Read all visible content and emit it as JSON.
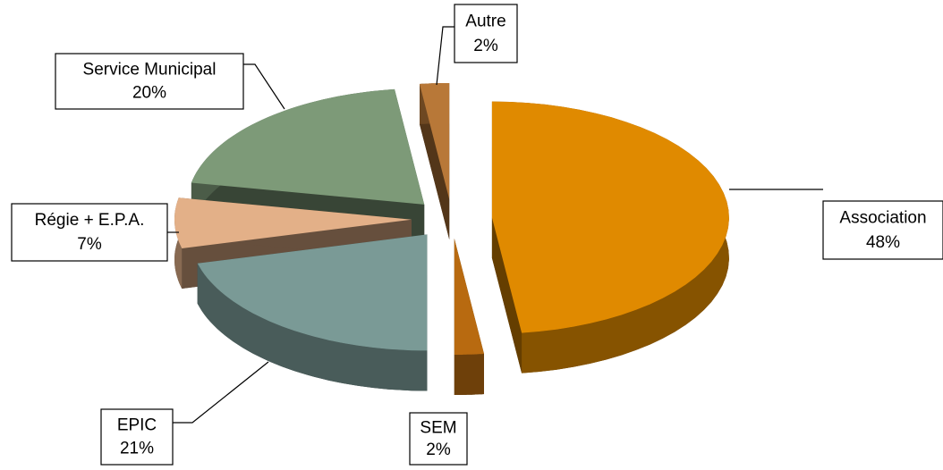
{
  "chart_data": {
    "type": "pie3d",
    "categories": [
      "Association",
      "SEM",
      "EPIC",
      "Régie + E.P.A.",
      "Service Municipal",
      "Autre"
    ],
    "values": [
      48,
      2,
      21,
      7,
      20,
      2
    ],
    "value_labels": [
      "48%",
      "2%",
      "21%",
      "7%",
      "20%",
      "2%"
    ],
    "colors": [
      "#e08a00",
      "#b86a10",
      "#7a9a96",
      "#e3b088",
      "#7d9a78",
      "#b87838"
    ]
  }
}
